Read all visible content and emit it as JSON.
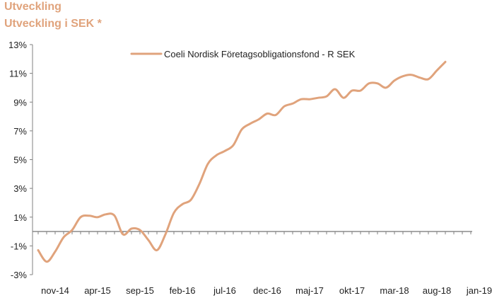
{
  "header": {
    "title": "Utveckling",
    "subtitle": "Utveckling i SEK *"
  },
  "colors": {
    "series": "#E0A37C",
    "axis": "#808080",
    "text": "#222222"
  },
  "chart_data": {
    "type": "line",
    "title": "",
    "xlabel": "",
    "ylabel": "",
    "ylim": [
      -3,
      13
    ],
    "y_ticks": [
      -3,
      -1,
      1,
      3,
      5,
      7,
      9,
      11,
      13
    ],
    "y_tick_labels": [
      "-3%",
      "-1%",
      "1%",
      "3%",
      "5%",
      "7%",
      "9%",
      "11%",
      "13%"
    ],
    "x_tick_labels": [
      "nov-14",
      "apr-15",
      "sep-15",
      "feb-16",
      "jul-16",
      "dec-16",
      "maj-17",
      "okt-17",
      "mar-18",
      "aug-18",
      "jan-19"
    ],
    "legend_position": "top",
    "grid": false,
    "series": [
      {
        "name": "Coeli Nordisk Företagsobligationsfond - R SEK",
        "x": [
          "2014-09",
          "2014-10",
          "2014-11",
          "2014-12",
          "2015-01",
          "2015-02",
          "2015-03",
          "2015-04",
          "2015-05",
          "2015-06",
          "2015-07",
          "2015-08",
          "2015-09",
          "2015-10",
          "2015-11",
          "2015-12",
          "2016-01",
          "2016-02",
          "2016-03",
          "2016-04",
          "2016-05",
          "2016-06",
          "2016-07",
          "2016-08",
          "2016-09",
          "2016-10",
          "2016-11",
          "2016-12",
          "2017-01",
          "2017-02",
          "2017-03",
          "2017-04",
          "2017-05",
          "2017-06",
          "2017-07",
          "2017-08",
          "2017-09",
          "2017-10",
          "2017-11",
          "2017-12",
          "2018-01",
          "2018-02",
          "2018-03",
          "2018-04",
          "2018-05",
          "2018-06",
          "2018-07",
          "2018-08",
          "2018-09",
          "2018-10",
          "2018-11",
          "2018-12",
          "2019-01",
          "2019-02"
        ],
        "values": [
          -1.3,
          -2.1,
          -1.4,
          -0.4,
          0.1,
          1.0,
          1.1,
          1.0,
          1.2,
          1.1,
          -0.2,
          0.2,
          0.1,
          -0.6,
          -1.3,
          -0.2,
          1.3,
          1.9,
          2.2,
          3.3,
          4.7,
          5.3,
          5.6,
          6.0,
          7.1,
          7.5,
          7.8,
          8.2,
          8.1,
          8.7,
          8.9,
          9.2,
          9.2,
          9.3,
          9.4,
          9.9,
          9.3,
          9.8,
          9.8,
          10.3,
          10.3,
          10.0,
          10.5,
          10.8,
          10.9,
          10.7,
          10.6,
          11.2,
          11.8,
          null,
          null,
          null,
          null,
          null
        ]
      }
    ]
  }
}
